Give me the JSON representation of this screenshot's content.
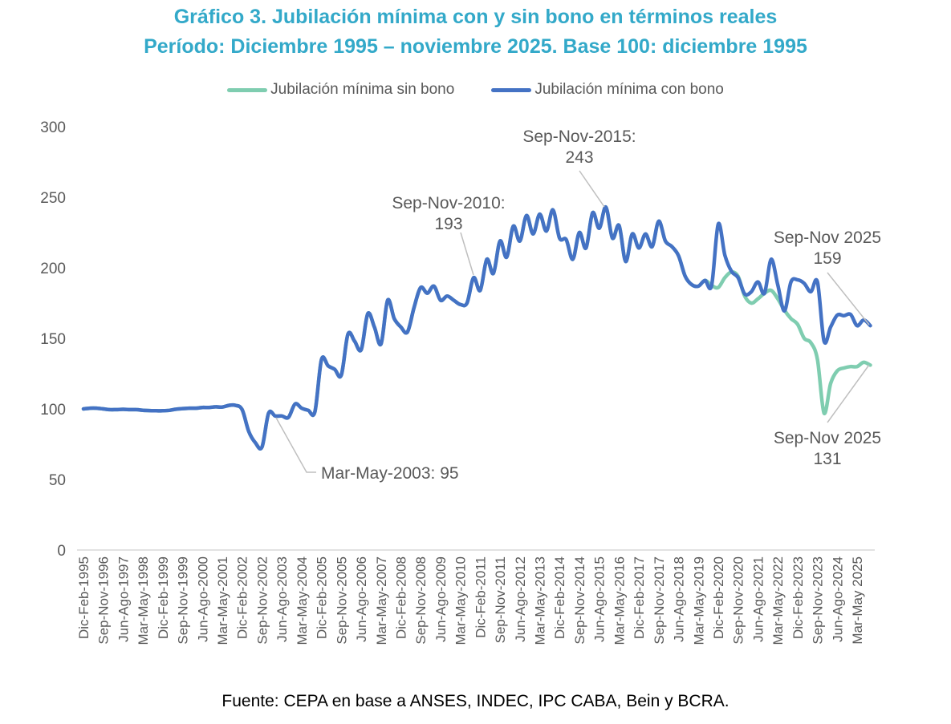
{
  "chart_data": {
    "type": "line",
    "title": "Gráfico 3. Jubilación mínima con y sin bono en términos reales",
    "subtitle": "Período: Diciembre 1995 – noviembre 2025. Base 100: diciembre 1995",
    "xlabel": "",
    "ylabel": "",
    "ylim": [
      0,
      300
    ],
    "yticks": [
      0,
      50,
      100,
      150,
      200,
      250,
      300
    ],
    "grid": false,
    "legend_position": "top",
    "x_tick_labels": [
      "Dic-Feb-1995",
      "Sep-Nov-1996",
      "Jun-Ago-1997",
      "Mar-May-1998",
      "Dic-Feb-1999",
      "Sep-Nov-1999",
      "Jun-Ago-2000",
      "Mar-May-2001",
      "Dic-Feb-2002",
      "Sep-Nov-2002",
      "Jun-Ago-2003",
      "Mar-May-2004",
      "Dic-Feb-2005",
      "Sep-Nov-2005",
      "Jun-Ago-2006",
      "Mar-May-2007",
      "Dic-Feb-2008",
      "Sep-Nov-2008",
      "Jun-Ago-2009",
      "Mar-May-2010",
      "Dic-Feb-2011",
      "Sep-Nov-2011",
      "Jun-Ago-2012",
      "Mar-May-2013",
      "Dic-Feb-2014",
      "Sep-Nov-2014",
      "Jun-Ago-2015",
      "Mar-May-2016",
      "Dic-Feb-2017",
      "Sep-Nov-2017",
      "Jun-Ago-2018",
      "Mar-May-2019",
      "Dic-Feb-2020",
      "Sep-Nov-2020",
      "Jun-Ago-2021",
      "Mar-May-2022",
      "Dic-Feb-2023",
      "Sep-Nov-2023",
      "Jun-Ago-2024",
      "Mar-May 2025"
    ],
    "x_tick_every": 3,
    "n_points": 120,
    "series": [
      {
        "name": "Jubilación mínima sin bono",
        "color": "#7fcdb0",
        "values": [
          100,
          100.5,
          100.5,
          100,
          99.5,
          99.5,
          99.7,
          99.5,
          99.5,
          99,
          98.8,
          98.7,
          98.7,
          99,
          99.8,
          100.2,
          100.5,
          100.5,
          101,
          101,
          101.5,
          101.3,
          102.5,
          102.5,
          99.5,
          84,
          76,
          73,
          97,
          95,
          95,
          94,
          103.5,
          100.5,
          99,
          98,
          135,
          130.5,
          128,
          124,
          153,
          148,
          142,
          167.5,
          158,
          146,
          177,
          164,
          158,
          154.5,
          172,
          186,
          182,
          187,
          177,
          180,
          177,
          174,
          175,
          193,
          184,
          206,
          196,
          219,
          207.5,
          229.5,
          219,
          237,
          224,
          238,
          226,
          241,
          221,
          220,
          206,
          225,
          214,
          239,
          228,
          243,
          221,
          230,
          204.5,
          224,
          214,
          224,
          215,
          233,
          219,
          215,
          208.5,
          194,
          188,
          187,
          191,
          187.5,
          186,
          193,
          197,
          194,
          180,
          175,
          178,
          182,
          184,
          178,
          170,
          164,
          160,
          150,
          147,
          135,
          97,
          118,
          127,
          129,
          130,
          130,
          133,
          131
        ]
      },
      {
        "name": "Jubilación mínima con bono",
        "color": "#4472c4",
        "values": [
          100,
          100.5,
          100.5,
          100,
          99.5,
          99.5,
          99.7,
          99.5,
          99.5,
          99,
          98.8,
          98.7,
          98.7,
          99,
          99.8,
          100.2,
          100.5,
          100.5,
          101,
          101,
          101.5,
          101.3,
          102.5,
          102.5,
          99.5,
          84,
          76,
          73,
          97,
          95,
          95,
          94,
          103.5,
          100.5,
          99,
          98,
          135,
          130.5,
          128,
          124,
          153,
          148,
          142,
          167.5,
          158,
          146,
          177,
          164,
          158,
          154.5,
          172,
          186,
          182,
          187,
          177,
          180,
          177,
          174,
          175,
          193,
          184,
          206,
          196,
          219,
          207.5,
          229.5,
          219,
          237,
          224,
          238,
          226,
          241,
          221,
          220,
          206,
          225,
          214,
          239,
          228,
          243,
          221,
          230,
          204.5,
          224,
          214,
          224,
          215,
          233,
          219,
          215,
          208.5,
          194,
          188,
          187,
          191,
          187.5,
          231,
          209,
          197.5,
          193,
          181.5,
          183,
          190,
          182,
          206,
          188,
          169.5,
          190,
          191.5,
          189,
          183,
          190,
          148,
          158,
          166.5,
          166,
          167,
          159,
          163,
          159
        ]
      }
    ],
    "annotations": [
      {
        "text_line1": "Mar-May-2003: 95",
        "text_line2": "",
        "index": 29,
        "value": 95,
        "series": 1
      },
      {
        "text_line1": "Sep-Nov-2010:",
        "text_line2": "193",
        "index": 59,
        "value": 193,
        "series": 1
      },
      {
        "text_line1": "Sep-Nov-2015:",
        "text_line2": "243",
        "index": 79,
        "value": 243,
        "series": 1
      },
      {
        "text_line1": "Sep-Nov 2025",
        "text_line2": "159",
        "index": 119,
        "value": 159,
        "series": 1
      },
      {
        "text_line1": "Sep-Nov 2025",
        "text_line2": "131",
        "index": 119,
        "value": 131,
        "series": 0
      }
    ],
    "source": "Fuente: CEPA en base a ANSES, INDEC, IPC CABA, Bein y BCRA."
  }
}
